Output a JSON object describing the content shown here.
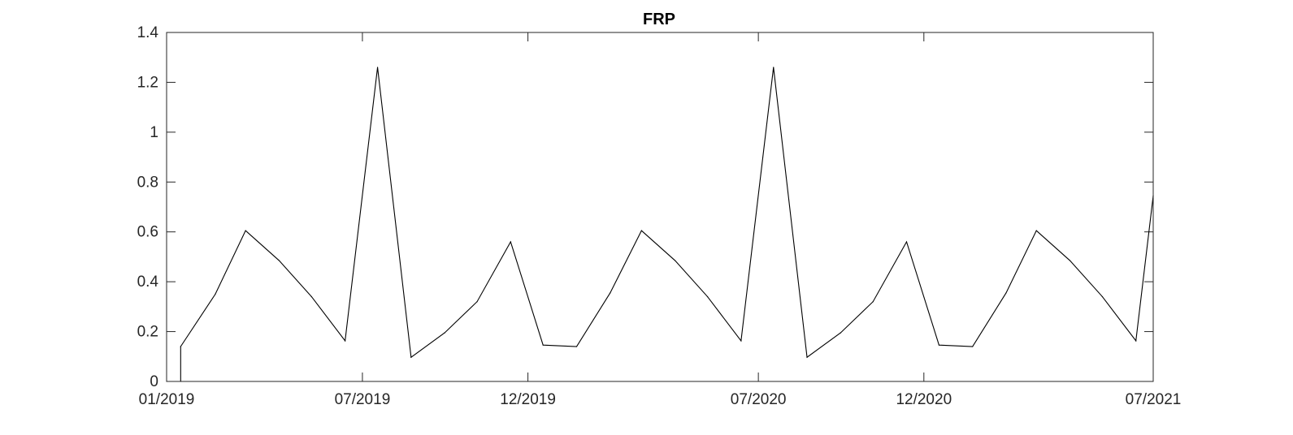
{
  "chart_data": {
    "type": "line",
    "title": "FRP",
    "xlabel": "",
    "ylabel": "",
    "x_tick_labels": [
      "01/2019",
      "07/2019",
      "12/2019",
      "07/2020",
      "12/2020",
      "07/2021"
    ],
    "x_tick_dates": [
      "2019-01-01",
      "2019-07-01",
      "2019-12-01",
      "2020-07-01",
      "2020-12-01",
      "2021-07-01"
    ],
    "y_tick_labels": [
      "0",
      "0.2",
      "0.4",
      "0.6",
      "0.8",
      "1",
      "1.2",
      "1.4"
    ],
    "y_tick_values": [
      0,
      0.2,
      0.4,
      0.6,
      0.8,
      1,
      1.2,
      1.4
    ],
    "xlim": [
      "2019-01-01",
      "2021-07-01"
    ],
    "ylim": [
      0,
      1.4
    ],
    "grid": false,
    "box": true,
    "line_color": "#000000",
    "series": [
      {
        "x": [
          "2019-01-01",
          "2019-01-14",
          "2019-01-14",
          "2019-02-15",
          "2019-03-15",
          "2019-04-15",
          "2019-05-15",
          "2019-06-15",
          "2019-07-15",
          "2019-08-15",
          "2019-09-15",
          "2019-10-15",
          "2019-11-15",
          "2019-12-15",
          "2020-01-15",
          "2020-02-15",
          "2020-03-15",
          "2020-04-15",
          "2020-05-15",
          "2020-06-15",
          "2020-07-15",
          "2020-08-15",
          "2020-09-15",
          "2020-10-15",
          "2020-11-15",
          "2020-12-15",
          "2021-01-15",
          "2021-02-15",
          "2021-03-15",
          "2021-04-15",
          "2021-05-15",
          "2021-06-15",
          "2021-07-01"
        ],
        "values": [
          0,
          0,
          0.14,
          0.35,
          0.605,
          0.485,
          0.34,
          0.163,
          1.26,
          0.097,
          0.195,
          0.32,
          0.56,
          0.146,
          0.14,
          0.355,
          0.605,
          0.485,
          0.34,
          0.163,
          1.26,
          0.097,
          0.195,
          0.32,
          0.56,
          0.146,
          0.14,
          0.355,
          0.605,
          0.485,
          0.34,
          0.163,
          0.745
        ]
      }
    ]
  }
}
